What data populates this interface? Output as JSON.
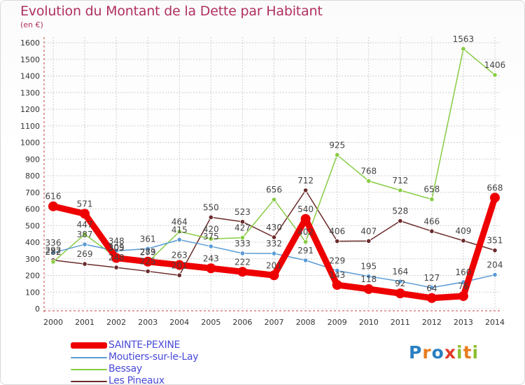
{
  "title": "Evolution du Montant de la Dette par Habitant",
  "subtitle": "(en €)",
  "logo_text": "Proxiti",
  "chart_data": {
    "type": "line",
    "title": "Evolution du Montant de la Dette par Habitant",
    "ylabel": "(en €)",
    "ylim": [
      0,
      1600
    ],
    "yticks": [
      0,
      100,
      200,
      300,
      400,
      500,
      600,
      700,
      800,
      900,
      1000,
      1100,
      1200,
      1300,
      1400,
      1500,
      1600
    ],
    "x": [
      "2000",
      "2001",
      "2002",
      "2003",
      "2004",
      "2005",
      "2006",
      "2007",
      "2008",
      "2009",
      "2010",
      "2011",
      "2012",
      "2013",
      "2014"
    ],
    "grid": true,
    "legend_position": "bottom-left",
    "series": [
      {
        "name": "Les Pineaux",
        "color": "#6b2b2b",
        "values": [
          292,
          269,
          248,
          225,
          201,
          550,
          523,
          430,
          712,
          406,
          407,
          528,
          466,
          409,
          351
        ],
        "labels_on_points": true
      },
      {
        "name": "Bessay",
        "color": "#88cc44",
        "values": [
          282,
          447,
          309,
          279,
          464,
          420,
          427,
          656,
          402,
          925,
          768,
          712,
          658,
          1563,
          1406
        ],
        "labels_on_points": true
      },
      {
        "name": "Moutiers-sur-le-Lay",
        "color": "#5a9bd5",
        "values": [
          336,
          387,
          348,
          361,
          415,
          375,
          333,
          332,
          291,
          229,
          195,
          164,
          127,
          160,
          204
        ],
        "labels_on_points": true
      },
      {
        "name": "SAINTE-PEXINE",
        "color": "#ee0000",
        "values": [
          616,
          571,
          305,
          283,
          263,
          243,
          222,
          201,
          540,
          143,
          118,
          92,
          64,
          76,
          668
        ],
        "labels_on_points": true
      }
    ],
    "legend_order": [
      "SAINTE-PEXINE",
      "Moutiers-sur-le-Lay",
      "Bessay",
      "Les Pineaux"
    ]
  }
}
